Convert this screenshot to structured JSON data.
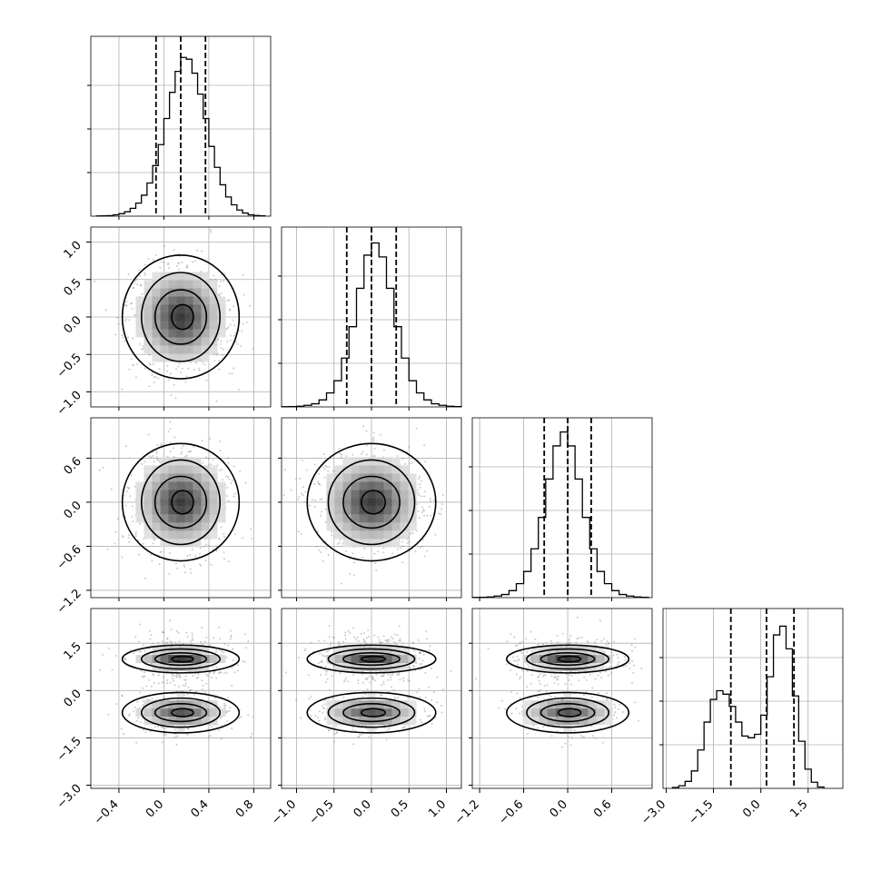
{
  "chart_data": {
    "type": "corner",
    "grid": true,
    "colors": {
      "line": "#000000",
      "grid": "#b0b0b0",
      "scatter": "#8a8a8a"
    },
    "parameters": [
      {
        "range": [
          -0.65,
          0.95
        ],
        "ticks": [
          -0.4,
          0.0,
          0.4,
          0.8
        ],
        "tick_labels": [
          "−0.4",
          "0.0",
          "0.4",
          "0.8"
        ],
        "quantiles": [
          -0.07,
          0.15,
          0.37
        ],
        "hist_edges": [
          -0.6,
          -0.55,
          -0.5,
          -0.45,
          -0.4,
          -0.35,
          -0.3,
          -0.25,
          -0.2,
          -0.15,
          -0.1,
          -0.05,
          0.0,
          0.05,
          0.1,
          0.15,
          0.2,
          0.25,
          0.3,
          0.35,
          0.4,
          0.45,
          0.5,
          0.55,
          0.6,
          0.65,
          0.7,
          0.75,
          0.8,
          0.85,
          0.9
        ],
        "hist_counts": [
          1,
          2,
          3,
          8,
          14,
          25,
          45,
          75,
          120,
          190,
          290,
          410,
          560,
          710,
          830,
          910,
          900,
          820,
          700,
          560,
          400,
          280,
          180,
          110,
          65,
          35,
          18,
          8,
          4,
          2
        ],
        "hist_ymax": 1000
      },
      {
        "range": [
          -1.2,
          1.2
        ],
        "ticks": [
          -1.0,
          -0.5,
          0.0,
          0.5,
          1.0
        ],
        "tick_labels": [
          "−1.0",
          "−0.5",
          "0.0",
          "0.5",
          "1.0"
        ],
        "quantiles": [
          -0.33,
          0.0,
          0.33
        ],
        "hist_edges": [
          -1.2,
          -1.1,
          -1.0,
          -0.9,
          -0.8,
          -0.7,
          -0.6,
          -0.5,
          -0.4,
          -0.3,
          -0.2,
          -0.1,
          0.0,
          0.1,
          0.2,
          0.3,
          0.4,
          0.5,
          0.6,
          0.7,
          0.8,
          0.9,
          1.0,
          1.1,
          1.2
        ],
        "hist_counts": [
          1,
          2,
          4,
          9,
          18,
          40,
          80,
          150,
          280,
          460,
          680,
          870,
          940,
          860,
          680,
          460,
          280,
          150,
          80,
          40,
          18,
          9,
          4,
          2
        ],
        "hist_ymax": 1000
      },
      {
        "range": [
          -1.3,
          1.15
        ],
        "ticks": [
          -1.2,
          -0.6,
          0.0,
          0.6
        ],
        "tick_labels": [
          "−1.2",
          "−0.6",
          "0.0",
          "0.6"
        ],
        "quantiles": [
          -0.32,
          0.0,
          0.32
        ],
        "hist_edges": [
          -1.3,
          -1.2,
          -1.1,
          -1.0,
          -0.9,
          -0.8,
          -0.7,
          -0.6,
          -0.5,
          -0.4,
          -0.3,
          -0.2,
          -0.1,
          0.0,
          0.1,
          0.2,
          0.3,
          0.4,
          0.5,
          0.6,
          0.7,
          0.8,
          0.9,
          1.0,
          1.1
        ],
        "hist_counts": [
          1,
          2,
          4,
          9,
          18,
          40,
          80,
          150,
          280,
          460,
          680,
          870,
          950,
          870,
          680,
          460,
          280,
          150,
          80,
          40,
          18,
          9,
          4,
          2
        ],
        "hist_ymax": 1000
      },
      {
        "range": [
          -3.1,
          2.6
        ],
        "ticks": [
          -3.0,
          -1.5,
          0.0,
          1.5
        ],
        "tick_labels": [
          "−3.0",
          "−1.5",
          "0.0",
          "1.5"
        ],
        "quantiles": [
          -0.95,
          0.18,
          1.05
        ],
        "hist_edges": [
          -2.8,
          -2.6,
          -2.4,
          -2.2,
          -2.0,
          -1.8,
          -1.6,
          -1.4,
          -1.2,
          -1.0,
          -0.8,
          -0.6,
          -0.4,
          -0.2,
          0.0,
          0.2,
          0.4,
          0.6,
          0.8,
          1.0,
          1.2,
          1.4,
          1.6,
          1.8,
          2.0
        ],
        "hist_counts": [
          5,
          15,
          40,
          100,
          220,
          380,
          510,
          560,
          540,
          470,
          380,
          300,
          290,
          310,
          420,
          640,
          880,
          930,
          800,
          530,
          270,
          110,
          35,
          8
        ],
        "hist_ymax": 1000
      }
    ],
    "joint": [
      {
        "row": 1,
        "col": 0,
        "centers": [
          [
            0.15,
            0.0,
            1.0
          ]
        ],
        "sd_x": 0.2,
        "sd_y": 0.33
      },
      {
        "row": 2,
        "col": 0,
        "centers": [
          [
            0.15,
            0.0,
            1.0
          ]
        ],
        "sd_x": 0.2,
        "sd_y": 0.32
      },
      {
        "row": 2,
        "col": 1,
        "centers": [
          [
            0.0,
            0.0,
            1.0
          ]
        ],
        "sd_x": 0.33,
        "sd_y": 0.32
      },
      {
        "row": 3,
        "col": 0,
        "centers": [
          [
            0.15,
            1.0,
            0.58
          ],
          [
            0.15,
            -0.7,
            0.42
          ]
        ],
        "sd_x": 0.2,
        "sd_y": 0.4
      },
      {
        "row": 3,
        "col": 1,
        "centers": [
          [
            0.0,
            1.0,
            0.58
          ],
          [
            0.0,
            -0.7,
            0.42
          ]
        ],
        "sd_x": 0.33,
        "sd_y": 0.4
      },
      {
        "row": 3,
        "col": 2,
        "centers": [
          [
            0.0,
            1.0,
            0.58
          ],
          [
            0.0,
            -0.7,
            0.42
          ]
        ],
        "sd_x": 0.32,
        "sd_y": 0.4
      }
    ]
  }
}
